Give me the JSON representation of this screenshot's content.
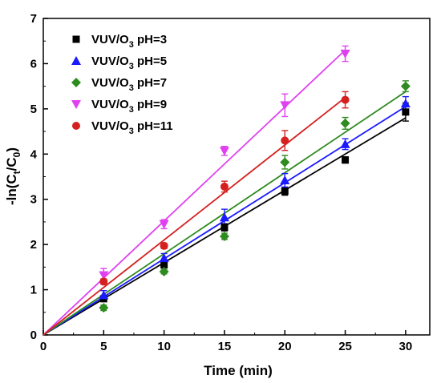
{
  "chart_data": {
    "type": "scatter",
    "xlabel": "Time (min)",
    "ylabel": "-ln(Ct/C0)",
    "xlim": [
      0,
      32
    ],
    "ylim": [
      0,
      7
    ],
    "xticks": [
      "0",
      "5",
      "10",
      "15",
      "20",
      "25",
      "30"
    ],
    "yticks": [
      "0",
      "1",
      "2",
      "3",
      "4",
      "5",
      "6",
      "7"
    ],
    "legend_position": "top-left",
    "series": [
      {
        "name": "VUV/O3 pH=3",
        "marker": "square",
        "color": "#000000",
        "x": [
          0,
          5,
          10,
          15,
          20,
          25,
          30
        ],
        "y": [
          0,
          0.8,
          1.55,
          2.38,
          3.18,
          3.87,
          4.93
        ],
        "err": [
          0,
          0.05,
          0.06,
          0.08,
          0.09,
          0.07,
          0.2
        ],
        "fit": [
          [
            0,
            0
          ],
          [
            30,
            4.8
          ]
        ]
      },
      {
        "name": "VUV/O3 pH=5",
        "marker": "triangle-up",
        "color": "#1a1aff",
        "x": [
          0,
          5,
          10,
          15,
          20,
          25,
          30
        ],
        "y": [
          0,
          0.88,
          1.7,
          2.6,
          3.42,
          4.22,
          5.12
        ],
        "err": [
          0,
          0.1,
          0.1,
          0.18,
          0.15,
          0.12,
          0.15
        ],
        "fit": [
          [
            0,
            0
          ],
          [
            30,
            5.05
          ]
        ]
      },
      {
        "name": "VUV/O3 pH=7",
        "marker": "diamond",
        "color": "#2e8b1f",
        "x": [
          0,
          5,
          10,
          15,
          20,
          25,
          30
        ],
        "y": [
          0,
          0.6,
          1.4,
          2.18,
          3.82,
          4.68,
          5.5
        ],
        "err": [
          0,
          0.06,
          0.05,
          0.07,
          0.15,
          0.13,
          0.12
        ],
        "fit": [
          [
            0,
            0
          ],
          [
            30,
            5.38
          ]
        ]
      },
      {
        "name": "VUV/O3 pH=9",
        "marker": "triangle-down",
        "color": "#e040f0",
        "x": [
          0,
          5,
          10,
          15,
          20,
          25
        ],
        "y": [
          0,
          1.32,
          2.45,
          4.07,
          5.08,
          6.22
        ],
        "err": [
          0,
          0.15,
          0.1,
          0.1,
          0.25,
          0.17
        ],
        "fit": [
          [
            0,
            0
          ],
          [
            25,
            6.3
          ]
        ]
      },
      {
        "name": "VUV/O3 pH=11",
        "marker": "circle",
        "color": "#d62020",
        "x": [
          0,
          5,
          10,
          15,
          20,
          25
        ],
        "y": [
          0,
          1.18,
          1.97,
          3.28,
          4.3,
          5.2
        ],
        "err": [
          0,
          0.06,
          0.06,
          0.12,
          0.22,
          0.18
        ],
        "fit": [
          [
            0,
            0
          ],
          [
            25,
            5.25
          ]
        ]
      }
    ]
  },
  "legend": {
    "items": [
      {
        "prefix": "VUV/O",
        "sub": "3",
        "suffix": " pH=3"
      },
      {
        "prefix": "VUV/O",
        "sub": "3",
        "suffix": " pH=5"
      },
      {
        "prefix": "VUV/O",
        "sub": "3",
        "suffix": " pH=7"
      },
      {
        "prefix": "VUV/O",
        "sub": "3",
        "suffix": " pH=9"
      },
      {
        "prefix": "VUV/O",
        "sub": "3",
        "suffix": " pH=11"
      }
    ]
  },
  "axes": {
    "xlabel": "Time (min)",
    "ylabel_parts": [
      "-ln(C",
      "t",
      "/C",
      "0",
      ")"
    ]
  }
}
